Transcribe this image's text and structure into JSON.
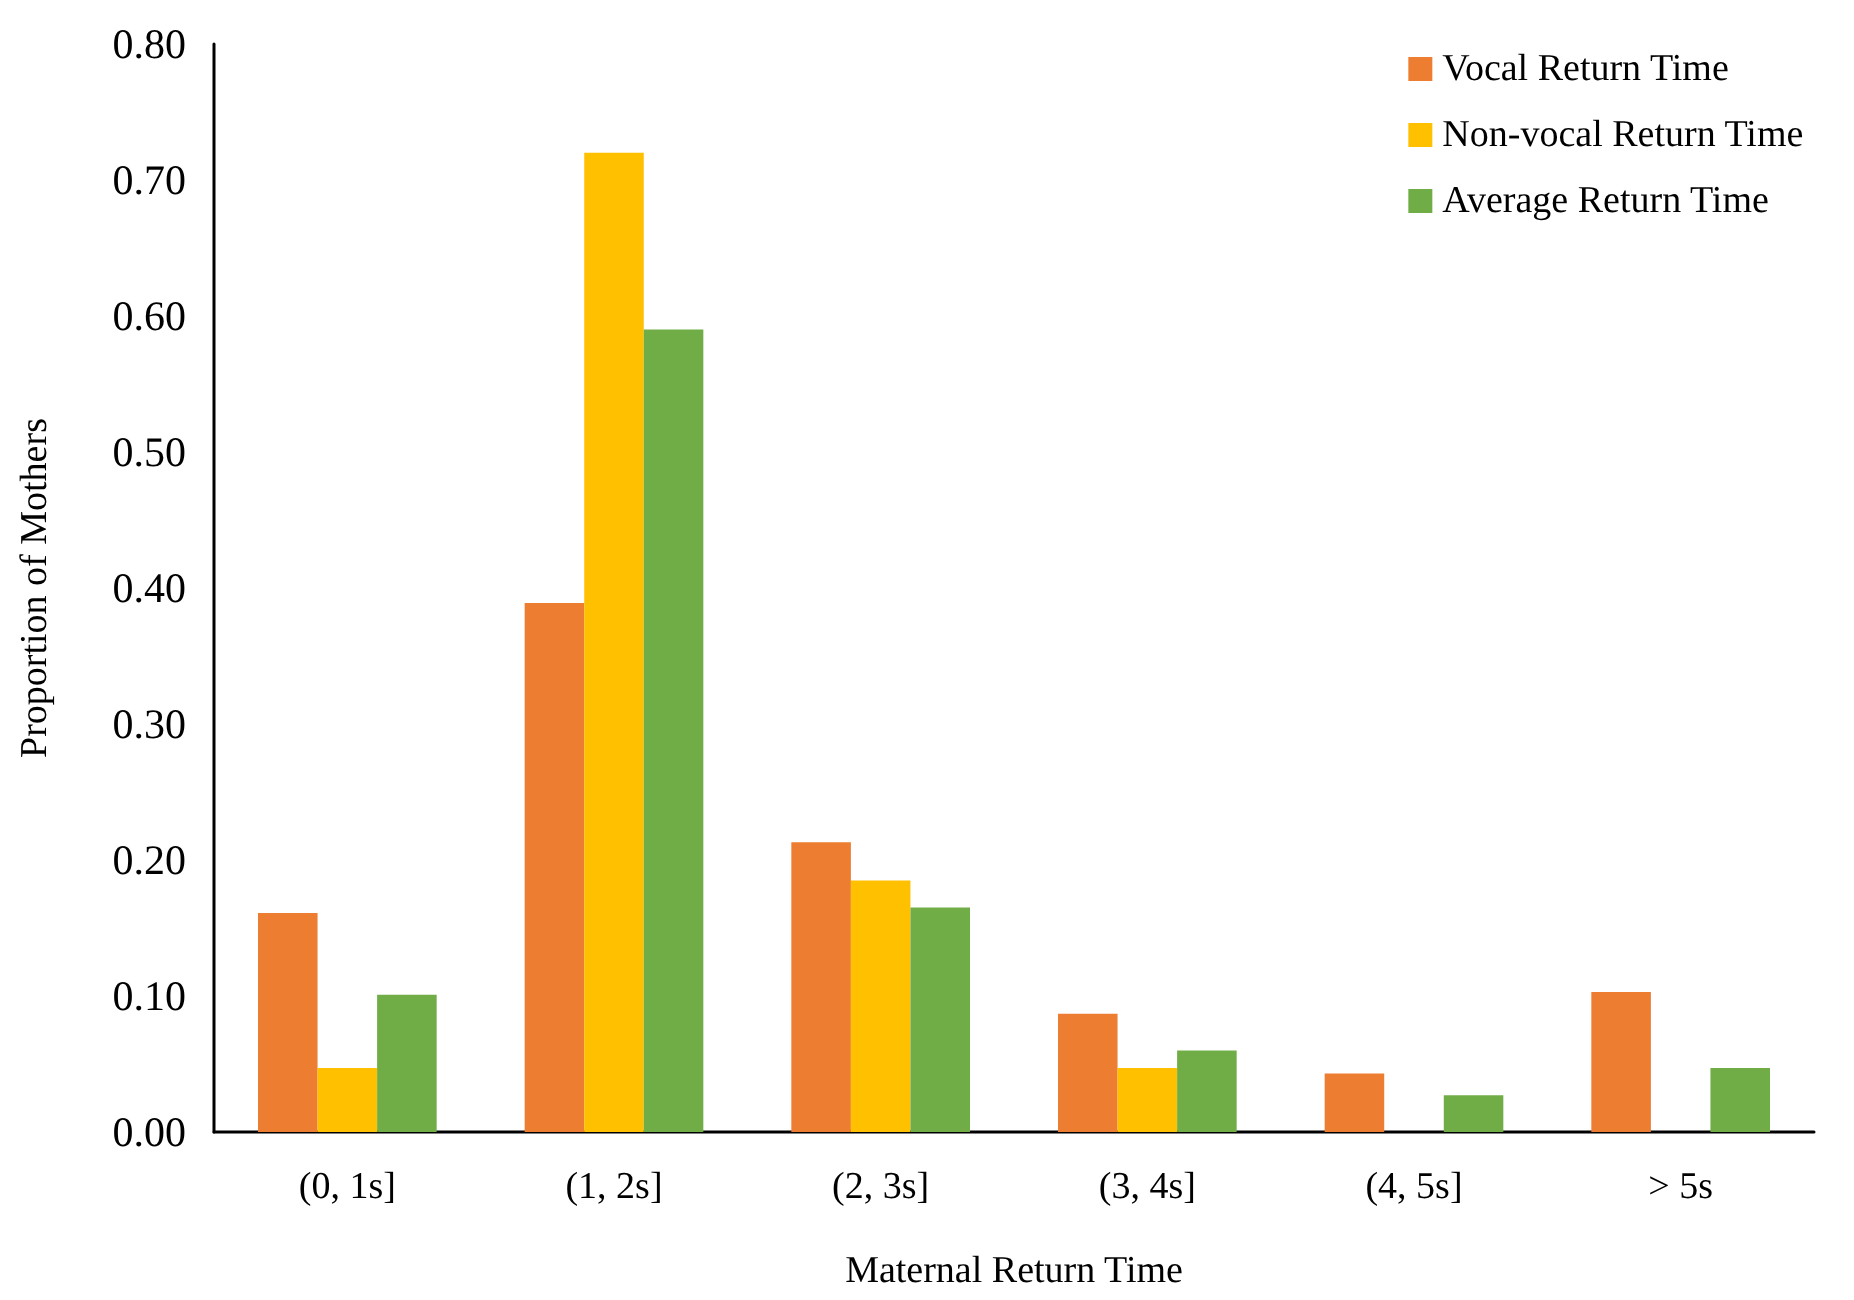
{
  "chart_data": {
    "type": "bar",
    "xlabel": "Maternal Return Time",
    "ylabel": "Proportion of Mothers",
    "categories": [
      "(0, 1s]",
      "(1, 2s]",
      "(2, 3s]",
      "(3, 4s]",
      "(4, 5s]",
      "> 5s"
    ],
    "series": [
      {
        "name": "Vocal Return Time",
        "color": "#ed7d31",
        "values": [
          0.161,
          0.389,
          0.213,
          0.087,
          0.043,
          0.103
        ]
      },
      {
        "name": "Non-vocal Return Time",
        "color": "#ffc000",
        "values": [
          0.047,
          0.72,
          0.185,
          0.047,
          0,
          0
        ]
      },
      {
        "name": "Average Return Time",
        "color": "#70ad47",
        "values": [
          0.101,
          0.59,
          0.165,
          0.06,
          0.027,
          0.047
        ]
      }
    ],
    "ylim": [
      0,
      0.8
    ],
    "yticks": [
      {
        "value": 0,
        "label": "0.00"
      },
      {
        "value": 0.1,
        "label": "0.10"
      },
      {
        "value": 0.2,
        "label": "0.20"
      },
      {
        "value": 0.3,
        "label": "0.30"
      },
      {
        "value": 0.4,
        "label": "0.40"
      },
      {
        "value": 0.5,
        "label": "0.50"
      },
      {
        "value": 0.6,
        "label": "0.60"
      },
      {
        "value": 0.7,
        "label": "0.70"
      },
      {
        "value": 0.8,
        "label": "0.80"
      }
    ],
    "grid": false,
    "legend": "top right"
  }
}
